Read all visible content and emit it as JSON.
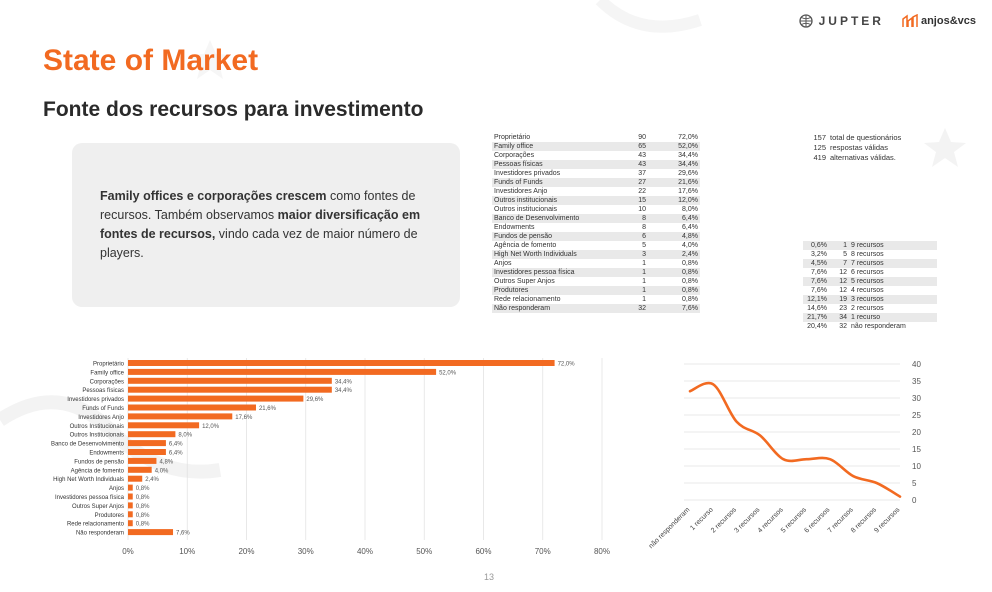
{
  "header": {
    "logo_jupter": "JUPTER",
    "logo_anjos": "anjos&vcs",
    "title": "State of Market",
    "subtitle": "Fonte dos recursos para investimento"
  },
  "textbox": {
    "p1_bold": "Family offices e corporações crescem",
    "p2": " como fontes de recursos. Também observamos ",
    "p3_bold": "maior diversificação em fontes de recursos,",
    "p4": " vindo cada vez de maior número de players."
  },
  "sources_table": [
    {
      "label": "Proprietário",
      "count": "90",
      "pct": "72,0%"
    },
    {
      "label": "Family office",
      "count": "65",
      "pct": "52,0%"
    },
    {
      "label": "Corporações",
      "count": "43",
      "pct": "34,4%"
    },
    {
      "label": "Pessoas físicas",
      "count": "43",
      "pct": "34,4%"
    },
    {
      "label": "Investidores privados",
      "count": "37",
      "pct": "29,6%"
    },
    {
      "label": "Funds of Funds",
      "count": "27",
      "pct": "21,6%"
    },
    {
      "label": "Investidores Anjo",
      "count": "22",
      "pct": "17,6%"
    },
    {
      "label": "Outros institucionais",
      "count": "15",
      "pct": "12,0%"
    },
    {
      "label": "Outros institucionais",
      "count": "10",
      "pct": "8,0%"
    },
    {
      "label": "Banco de Desenvolvimento",
      "count": "8",
      "pct": "6,4%"
    },
    {
      "label": "Endowments",
      "count": "8",
      "pct": "6,4%"
    },
    {
      "label": "Fundos de pensão",
      "count": "6",
      "pct": "4,8%"
    },
    {
      "label": "Agência de fomento",
      "count": "5",
      "pct": "4,0%"
    },
    {
      "label": "High Net Worth Individuals",
      "count": "3",
      "pct": "2,4%"
    },
    {
      "label": "Anjos",
      "count": "1",
      "pct": "0,8%"
    },
    {
      "label": "Investidores pessoa física",
      "count": "1",
      "pct": "0,8%"
    },
    {
      "label": "Outros Super Anjos",
      "count": "1",
      "pct": "0,8%"
    },
    {
      "label": "Produtores",
      "count": "1",
      "pct": "0,8%"
    },
    {
      "label": "Rede relacionamento",
      "count": "1",
      "pct": "0,8%"
    },
    {
      "label": "Não responderam",
      "count": "32",
      "pct": "7,6%"
    }
  ],
  "totals": [
    {
      "n": "157",
      "label": "total de questionários"
    },
    {
      "n": "125",
      "label": "respostas válidas"
    },
    {
      "n": "419",
      "label": "alternativas válidas."
    }
  ],
  "resources_table": [
    {
      "pct": "0,6%",
      "n": "1",
      "label": "9 recursos"
    },
    {
      "pct": "3,2%",
      "n": "5",
      "label": "8 recursos"
    },
    {
      "pct": "4,5%",
      "n": "7",
      "label": "7 recursos"
    },
    {
      "pct": "7,6%",
      "n": "12",
      "label": "6 recursos"
    },
    {
      "pct": "7,6%",
      "n": "12",
      "label": "5 recursos"
    },
    {
      "pct": "7,6%",
      "n": "12",
      "label": "4 recursos"
    },
    {
      "pct": "12,1%",
      "n": "19",
      "label": "3 recursos"
    },
    {
      "pct": "14,6%",
      "n": "23",
      "label": "2 recursos"
    },
    {
      "pct": "21,7%",
      "n": "34",
      "label": "1 recurso"
    },
    {
      "pct": "20,4%",
      "n": "32",
      "label": "não responderam"
    }
  ],
  "page_number": "13",
  "chart_data": [
    {
      "type": "bar",
      "orientation": "horizontal",
      "color": "#f26a21",
      "categories": [
        "Proprietário",
        "Family office",
        "Corporações",
        "Pessoas físicas",
        "Investidores privados",
        "Funds of Funds",
        "Investidores Anjo",
        "Outros Institucionais",
        "Outros Institucionais",
        "Banco de Desenvolvimento",
        "Endowments",
        "Fundos de pensão",
        "Agência de fomento",
        "High Net Worth Individuals",
        "Anjos",
        "Investidores pessoa física",
        "Outros Super Anjos",
        "Produtores",
        "Rede relacionamento",
        "Não responderam"
      ],
      "values": [
        72.0,
        52.0,
        34.4,
        34.4,
        29.6,
        21.6,
        17.6,
        12.0,
        8.0,
        6.4,
        6.4,
        4.8,
        4.0,
        2.4,
        0.8,
        0.8,
        0.8,
        0.8,
        0.8,
        7.6
      ],
      "value_labels": [
        "72,0%",
        "52,0%",
        "34,4%",
        "34,4%",
        "29,6%",
        "21,6%",
        "17,6%",
        "12,0%",
        "8,0%",
        "6,4%",
        "6,4%",
        "4,8%",
        "4,0%",
        "2,4%",
        "0,8%",
        "0,8%",
        "0,8%",
        "0,8%",
        "0,8%",
        "7,6%"
      ],
      "xlim": [
        0,
        80
      ],
      "xticks": [
        "0%",
        "10%",
        "20%",
        "30%",
        "40%",
        "50%",
        "60%",
        "70%",
        "80%"
      ],
      "grid": true
    },
    {
      "type": "line",
      "color": "#f26a21",
      "categories": [
        "não responderam",
        "1 recurso",
        "2 recursos",
        "3 recursos",
        "4 recursos",
        "5 recursos",
        "6 recursos",
        "7 recursos",
        "8 recursos",
        "9 recursos"
      ],
      "values": [
        32,
        34,
        23,
        19,
        12,
        12,
        12,
        7,
        5,
        1
      ],
      "ylim": [
        0,
        40
      ],
      "yticks": [
        "0",
        "5",
        "10",
        "15",
        "20",
        "25",
        "30",
        "35",
        "40"
      ],
      "grid": true
    }
  ]
}
